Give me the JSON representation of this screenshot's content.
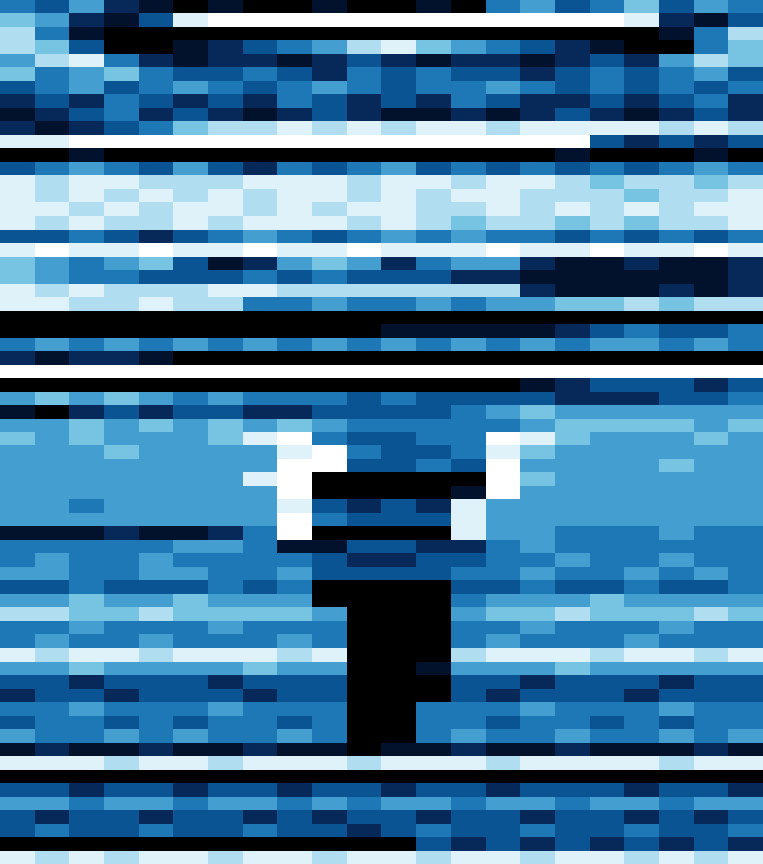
{
  "chart_data": {
    "type": "heatmap",
    "grid": false,
    "tick_labels": false,
    "xlim": [
      -0.5,
      21.5
    ],
    "ylim": [
      63.5,
      -0.5
    ],
    "zlim": [
      0,
      9
    ],
    "cells": [
      [
        5,
        6,
        4,
        7,
        8,
        9,
        8,
        9,
        9,
        8,
        9,
        9,
        8,
        9,
        5,
        4,
        6,
        5,
        3,
        6,
        4,
        5
      ],
      [
        3,
        4,
        7,
        8,
        6,
        1,
        0,
        0,
        0,
        0,
        0,
        0,
        0,
        0,
        0,
        0,
        0,
        0,
        1,
        7,
        8,
        6
      ],
      [
        2,
        5,
        8,
        9,
        9,
        9,
        9,
        9,
        9,
        9,
        9,
        9,
        9,
        9,
        9,
        9,
        9,
        9,
        9,
        8,
        5,
        2
      ],
      [
        2,
        3,
        6,
        9,
        9,
        8,
        7,
        6,
        5,
        4,
        2,
        1,
        3,
        4,
        5,
        6,
        7,
        8,
        9,
        9,
        5,
        3
      ],
      [
        4,
        2,
        1,
        5,
        7,
        8,
        7,
        7,
        8,
        7,
        6,
        7,
        8,
        7,
        7,
        8,
        7,
        6,
        7,
        4,
        2,
        3
      ],
      [
        3,
        5,
        4,
        3,
        5,
        6,
        6,
        5,
        6,
        7,
        5,
        6,
        5,
        6,
        6,
        7,
        6,
        5,
        6,
        5,
        4,
        6
      ],
      [
        6,
        5,
        4,
        6,
        5,
        4,
        5,
        6,
        5,
        4,
        5,
        6,
        5,
        5,
        4,
        5,
        6,
        5,
        6,
        5,
        6,
        5
      ],
      [
        7,
        6,
        7,
        5,
        6,
        7,
        6,
        7,
        5,
        6,
        7,
        6,
        7,
        5,
        6,
        7,
        7,
        6,
        7,
        6,
        5,
        7
      ],
      [
        8,
        7,
        6,
        5,
        7,
        6,
        7,
        8,
        7,
        6,
        7,
        8,
        8,
        7,
        8,
        7,
        6,
        7,
        8,
        7,
        6,
        7
      ],
      [
        7,
        8,
        7,
        6,
        5,
        3,
        2,
        2,
        1,
        2,
        1,
        2,
        1,
        1,
        2,
        1,
        1,
        1,
        1,
        2,
        1,
        2
      ],
      [
        1,
        1,
        0,
        0,
        0,
        0,
        0,
        0,
        0,
        0,
        0,
        0,
        0,
        0,
        0,
        0,
        0,
        6,
        7,
        6,
        7,
        6
      ],
      [
        9,
        9,
        8,
        9,
        9,
        9,
        9,
        9,
        9,
        9,
        9,
        9,
        9,
        9,
        9,
        9,
        8,
        9,
        9,
        9,
        8,
        9
      ],
      [
        6,
        5,
        4,
        5,
        6,
        4,
        6,
        7,
        5,
        6,
        5,
        4,
        6,
        5,
        6,
        5,
        6,
        5,
        6,
        5,
        4,
        5
      ],
      [
        1,
        2,
        1,
        1,
        2,
        2,
        2,
        1,
        1,
        1,
        2,
        1,
        1,
        2,
        1,
        1,
        2,
        3,
        2,
        2,
        3,
        2
      ],
      [
        1,
        2,
        1,
        2,
        1,
        2,
        1,
        2,
        1,
        1,
        2,
        1,
        2,
        1,
        1,
        2,
        2,
        2,
        3,
        2,
        2,
        1
      ],
      [
        1,
        1,
        2,
        1,
        2,
        1,
        1,
        2,
        1,
        2,
        1,
        1,
        2,
        2,
        1,
        2,
        1,
        2,
        1,
        2,
        1,
        1
      ],
      [
        1,
        2,
        1,
        2,
        2,
        1,
        2,
        1,
        1,
        1,
        2,
        1,
        2,
        3,
        2,
        2,
        3,
        2,
        3,
        2,
        2,
        1
      ],
      [
        6,
        6,
        5,
        6,
        7,
        6,
        5,
        4,
        5,
        6,
        5,
        4,
        5,
        4,
        5,
        5,
        6,
        5,
        6,
        5,
        6,
        5
      ],
      [
        1,
        0,
        1,
        1,
        0,
        1,
        1,
        0,
        1,
        1,
        0,
        1,
        1,
        1,
        0,
        1,
        1,
        0,
        1,
        1,
        0,
        1
      ],
      [
        3,
        4,
        5,
        4,
        3,
        6,
        8,
        7,
        4,
        3,
        4,
        7,
        5,
        4,
        4,
        7,
        8,
        8,
        7,
        8,
        8,
        7
      ],
      [
        3,
        4,
        5,
        5,
        6,
        6,
        6,
        5,
        6,
        5,
        6,
        6,
        6,
        7,
        7,
        8,
        8,
        8,
        8,
        8,
        8,
        7
      ],
      [
        1,
        2,
        1,
        2,
        2,
        2,
        1,
        1,
        2,
        2,
        2,
        2,
        2,
        2,
        2,
        7,
        8,
        8,
        8,
        7,
        8,
        7
      ],
      [
        1,
        1,
        2,
        2,
        1,
        2,
        2,
        5,
        5,
        4,
        5,
        5,
        4,
        5,
        4,
        4,
        3,
        3,
        2,
        3,
        2,
        2
      ],
      [
        9,
        9,
        9,
        9,
        9,
        9,
        9,
        9,
        9,
        9,
        9,
        9,
        9,
        9,
        9,
        9,
        9,
        9,
        9,
        9,
        9,
        9
      ],
      [
        9,
        9,
        9,
        9,
        9,
        9,
        9,
        9,
        9,
        9,
        9,
        8,
        8,
        8,
        8,
        8,
        7,
        6,
        5,
        6,
        6,
        5
      ],
      [
        5,
        4,
        5,
        4,
        5,
        4,
        5,
        4,
        5,
        4,
        5,
        4,
        5,
        4,
        5,
        4,
        5,
        4,
        4,
        5,
        4,
        5
      ],
      [
        7,
        8,
        7,
        7,
        8,
        9,
        9,
        9,
        9,
        9,
        9,
        9,
        9,
        9,
        9,
        9,
        9,
        9,
        9,
        9,
        9,
        9
      ],
      [
        0,
        0,
        0,
        0,
        0,
        0,
        0,
        0,
        0,
        0,
        0,
        0,
        0,
        0,
        0,
        0,
        0,
        0,
        0,
        0,
        0,
        0
      ],
      [
        9,
        9,
        9,
        9,
        9,
        9,
        9,
        9,
        9,
        9,
        9,
        9,
        9,
        9,
        9,
        8,
        7,
        6,
        6,
        6,
        7,
        6
      ],
      [
        4,
        3,
        4,
        3,
        4,
        5,
        4,
        5,
        5,
        5,
        6,
        5,
        6,
        6,
        6,
        6,
        7,
        7,
        7,
        6,
        6,
        5
      ],
      [
        8,
        9,
        7,
        6,
        7,
        6,
        6,
        7,
        7,
        6,
        6,
        6,
        6,
        5,
        4,
        3,
        4,
        4,
        4,
        4,
        4,
        4
      ],
      [
        4,
        4,
        3,
        4,
        3,
        4,
        3,
        4,
        3,
        4,
        5,
        5,
        5,
        5,
        5,
        4,
        3,
        3,
        3,
        3,
        4,
        3
      ],
      [
        3,
        4,
        3,
        4,
        4,
        4,
        3,
        1,
        0,
        5,
        6,
        6,
        5,
        5,
        0,
        1,
        3,
        4,
        4,
        4,
        3,
        4
      ],
      [
        4,
        4,
        4,
        3,
        4,
        4,
        4,
        4,
        1,
        0,
        5,
        6,
        6,
        5,
        1,
        3,
        4,
        4,
        4,
        4,
        4,
        4
      ],
      [
        4,
        4,
        4,
        4,
        4,
        4,
        4,
        4,
        0,
        0,
        6,
        6,
        5,
        6,
        0,
        4,
        4,
        4,
        4,
        3,
        4,
        4
      ],
      [
        4,
        4,
        4,
        4,
        4,
        4,
        4,
        1,
        0,
        9,
        9,
        9,
        9,
        9,
        0,
        3,
        4,
        4,
        4,
        4,
        4,
        4
      ],
      [
        4,
        4,
        4,
        4,
        4,
        4,
        4,
        4,
        0,
        9,
        9,
        9,
        9,
        8,
        0,
        4,
        4,
        4,
        4,
        4,
        4,
        4
      ],
      [
        4,
        4,
        5,
        4,
        4,
        4,
        4,
        4,
        1,
        6,
        7,
        6,
        7,
        1,
        4,
        4,
        4,
        4,
        4,
        4,
        4,
        4
      ],
      [
        4,
        4,
        4,
        4,
        4,
        4,
        4,
        4,
        0,
        5,
        6,
        6,
        6,
        1,
        4,
        4,
        4,
        4,
        4,
        4,
        4,
        4
      ],
      [
        8,
        8,
        8,
        7,
        8,
        8,
        7,
        5,
        0,
        9,
        9,
        9,
        9,
        1,
        4,
        4,
        5,
        5,
        5,
        4,
        5,
        5
      ],
      [
        5,
        5,
        5,
        5,
        5,
        4,
        4,
        5,
        8,
        8,
        6,
        6,
        7,
        7,
        5,
        4,
        5,
        5,
        5,
        5,
        5,
        5
      ],
      [
        5,
        4,
        5,
        5,
        4,
        5,
        5,
        5,
        5,
        6,
        7,
        7,
        6,
        6,
        5,
        5,
        4,
        5,
        5,
        4,
        5,
        5
      ],
      [
        4,
        4,
        5,
        5,
        4,
        4,
        5,
        5,
        4,
        6,
        6,
        6,
        6,
        5,
        5,
        4,
        5,
        5,
        4,
        5,
        4,
        5
      ],
      [
        6,
        6,
        5,
        6,
        6,
        6,
        5,
        6,
        5,
        9,
        9,
        9,
        9,
        6,
        6,
        5,
        6,
        6,
        5,
        6,
        6,
        5
      ],
      [
        4,
        4,
        3,
        4,
        4,
        3,
        4,
        4,
        4,
        9,
        9,
        9,
        9,
        5,
        4,
        4,
        4,
        3,
        4,
        4,
        4,
        4
      ],
      [
        2,
        2,
        3,
        3,
        2,
        3,
        3,
        3,
        3,
        4,
        9,
        9,
        9,
        4,
        3,
        3,
        2,
        3,
        3,
        3,
        2,
        3
      ],
      [
        5,
        5,
        4,
        5,
        5,
        5,
        4,
        5,
        5,
        5,
        9,
        9,
        9,
        5,
        5,
        4,
        5,
        5,
        5,
        4,
        5,
        5
      ],
      [
        5,
        4,
        5,
        5,
        4,
        5,
        5,
        5,
        4,
        5,
        9,
        9,
        9,
        5,
        4,
        5,
        5,
        5,
        4,
        5,
        5,
        5
      ],
      [
        1,
        2,
        1,
        1,
        2,
        1,
        1,
        1,
        2,
        1,
        9,
        9,
        9,
        2,
        1,
        1,
        1,
        2,
        1,
        1,
        2,
        1
      ],
      [
        4,
        4,
        3,
        4,
        4,
        4,
        4,
        3,
        4,
        4,
        9,
        9,
        8,
        4,
        4,
        4,
        3,
        4,
        4,
        4,
        4,
        4
      ],
      [
        6,
        6,
        7,
        6,
        6,
        6,
        7,
        6,
        6,
        6,
        9,
        9,
        9,
        6,
        6,
        7,
        6,
        6,
        6,
        7,
        6,
        6
      ],
      [
        7,
        6,
        6,
        7,
        6,
        6,
        6,
        7,
        6,
        6,
        9,
        9,
        9,
        6,
        7,
        6,
        6,
        6,
        7,
        6,
        6,
        6
      ],
      [
        5,
        5,
        4,
        5,
        5,
        5,
        4,
        5,
        5,
        5,
        9,
        9,
        5,
        5,
        5,
        4,
        5,
        5,
        5,
        4,
        5,
        5
      ],
      [
        6,
        5,
        5,
        6,
        5,
        6,
        5,
        5,
        6,
        5,
        9,
        9,
        5,
        5,
        6,
        5,
        5,
        6,
        5,
        6,
        5,
        5
      ],
      [
        4,
        5,
        5,
        4,
        5,
        4,
        5,
        5,
        4,
        5,
        9,
        9,
        5,
        4,
        5,
        5,
        4,
        5,
        5,
        4,
        5,
        4
      ],
      [
        8,
        7,
        8,
        8,
        7,
        8,
        8,
        7,
        8,
        8,
        9,
        8,
        8,
        7,
        8,
        8,
        7,
        8,
        8,
        8,
        7,
        8
      ],
      [
        1,
        1,
        1,
        2,
        1,
        1,
        2,
        1,
        1,
        1,
        2,
        1,
        1,
        1,
        2,
        1,
        1,
        1,
        1,
        2,
        1,
        1
      ],
      [
        9,
        9,
        9,
        9,
        9,
        9,
        9,
        9,
        9,
        9,
        9,
        9,
        9,
        9,
        9,
        9,
        9,
        9,
        9,
        9,
        9,
        9
      ],
      [
        6,
        6,
        7,
        6,
        6,
        7,
        6,
        6,
        7,
        6,
        6,
        7,
        6,
        6,
        7,
        6,
        6,
        6,
        7,
        6,
        6,
        7
      ],
      [
        4,
        4,
        5,
        4,
        4,
        5,
        4,
        4,
        5,
        4,
        5,
        4,
        4,
        5,
        4,
        4,
        5,
        4,
        4,
        5,
        4,
        4
      ],
      [
        6,
        7,
        6,
        6,
        7,
        6,
        6,
        7,
        6,
        7,
        6,
        6,
        7,
        6,
        6,
        7,
        6,
        6,
        7,
        6,
        7,
        6
      ],
      [
        6,
        5,
        6,
        6,
        5,
        6,
        6,
        5,
        6,
        6,
        7,
        6,
        5,
        6,
        6,
        5,
        6,
        6,
        5,
        6,
        6,
        5
      ],
      [
        9,
        9,
        9,
        9,
        9,
        9,
        9,
        9,
        9,
        9,
        9,
        9,
        6,
        7,
        6,
        7,
        6,
        7,
        6,
        7,
        6,
        7
      ],
      [
        1,
        2,
        1,
        2,
        1,
        1,
        2,
        1,
        1,
        2,
        1,
        1,
        2,
        1,
        1,
        2,
        1,
        1,
        2,
        1,
        2,
        1
      ]
    ]
  }
}
